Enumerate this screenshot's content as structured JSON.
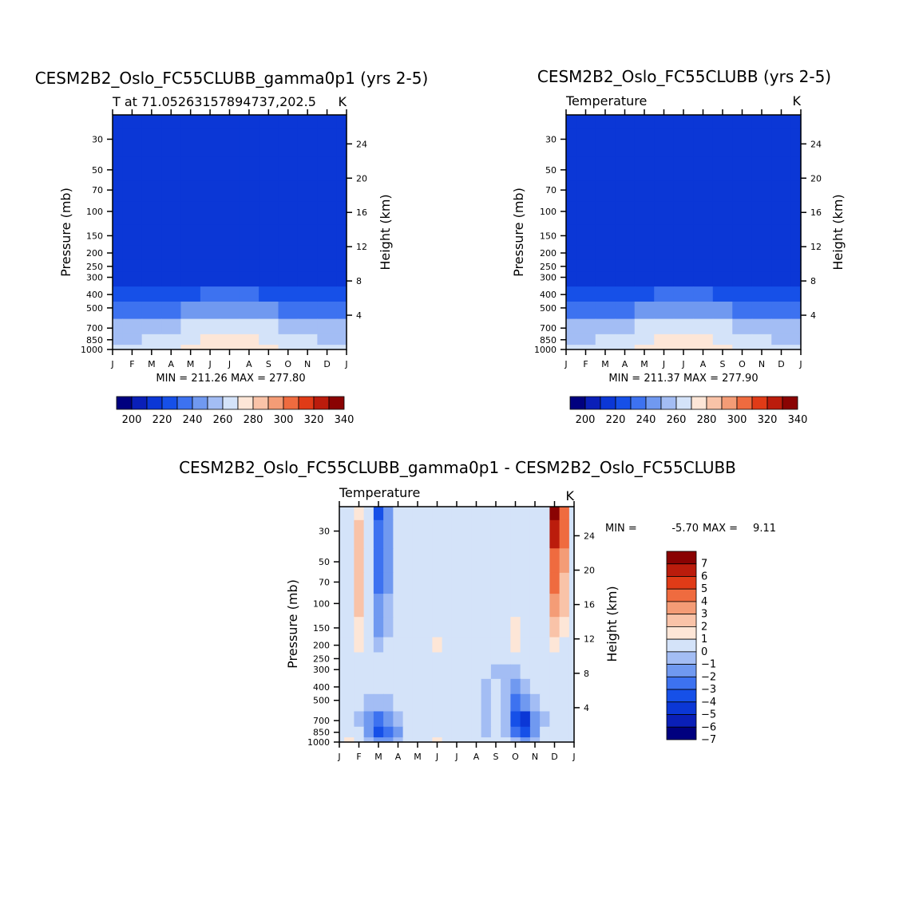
{
  "colors": {
    "palette": [
      "#00007f",
      "#0a1fb8",
      "#0b37d6",
      "#1650e8",
      "#3d72f0",
      "#7099f0",
      "#a3bdf4",
      "#d4e3f9",
      "#fde6d7",
      "#f9c3a8",
      "#f49c76",
      "#ef6b3f",
      "#e03b17",
      "#bb1c0c",
      "#8a0303"
    ],
    "diff_palette": [
      "#00007f",
      "#0a1fb8",
      "#0b37d6",
      "#1650e8",
      "#3d72f0",
      "#7099f0",
      "#a3bdf4",
      "#d4e3f9",
      "#fde6d7",
      "#f9c3a8",
      "#f49c76",
      "#ef6b3f",
      "#e03b17",
      "#bb1c0c",
      "#8a0303"
    ]
  },
  "chart_data": [
    {
      "type": "heatmap",
      "title": "CESM2B2_Oslo_FC55CLUBB_gamma0p1 (yrs 2-5)",
      "subtitle_left": "T at 71.05263157894737,202.5",
      "subtitle_right": "K",
      "xlabel": "",
      "ylabel": "Pressure (mb)",
      "y2label": "Height (km)",
      "x_ticks": [
        "J",
        "F",
        "M",
        "A",
        "M",
        "J",
        "J",
        "A",
        "S",
        "O",
        "N",
        "D",
        "J"
      ],
      "y_ticks": [
        "30",
        "50",
        "70",
        "100",
        "150",
        "200",
        "250",
        "300",
        "400",
        "500",
        "700",
        "850",
        "1000"
      ],
      "y_tick_values": [
        30,
        50,
        70,
        100,
        150,
        200,
        250,
        300,
        400,
        500,
        700,
        850,
        1000
      ],
      "y2_ticks": [
        "24",
        "20",
        "16",
        "12",
        "8",
        "4"
      ],
      "y2_tick_values": [
        24,
        20,
        16,
        12,
        8,
        4
      ],
      "ylim": [
        20,
        1000
      ],
      "stats": "MIN = 211.26 MAX = 277.80",
      "levels": [
        195,
        200,
        205,
        210,
        215,
        220,
        225,
        230,
        235,
        240,
        245,
        250,
        255,
        260,
        265,
        270,
        275,
        280
      ],
      "colorbar_labels": [
        "200",
        "220",
        "240",
        "260",
        "280",
        "300",
        "320",
        "340"
      ],
      "colorbar_values": [
        200,
        220,
        240,
        260,
        280,
        300,
        320,
        340
      ],
      "columns_months": [
        0,
        1,
        2,
        3,
        4,
        5,
        6,
        7,
        8,
        9,
        10,
        11,
        12
      ],
      "rows_pressure": [
        20,
        30,
        50,
        70,
        100,
        150,
        200,
        250,
        300,
        400,
        500,
        700,
        850,
        1000
      ],
      "values": [
        [
          213,
          213,
          215,
          217,
          218,
          219,
          219,
          219,
          218,
          217,
          215,
          214,
          213
        ],
        [
          213,
          213,
          215,
          217,
          218,
          219,
          219,
          219,
          218,
          217,
          215,
          214,
          213
        ],
        [
          213,
          213,
          215,
          217,
          218,
          219,
          219,
          219,
          218,
          217,
          215,
          214,
          213
        ],
        [
          213,
          213,
          215,
          217,
          218,
          219,
          219,
          219,
          218,
          217,
          215,
          214,
          213
        ],
        [
          212,
          213,
          216,
          217,
          217,
          218,
          218,
          218,
          217,
          216,
          216,
          213,
          212
        ],
        [
          212,
          212,
          212,
          213,
          216,
          217,
          217,
          217,
          216,
          214,
          212,
          212,
          212
        ],
        [
          211,
          211,
          211,
          212,
          214,
          217,
          217,
          216,
          213,
          212,
          212,
          212,
          211
        ],
        [
          212,
          212,
          212,
          213,
          215,
          217,
          217,
          217,
          216,
          214,
          213,
          213,
          212
        ],
        [
          213,
          213,
          214,
          215,
          217,
          219,
          219,
          219,
          217,
          216,
          215,
          214,
          213
        ],
        [
          222,
          222,
          223,
          225,
          228,
          231,
          232,
          231,
          228,
          225,
          223,
          222,
          222
        ],
        [
          234,
          234,
          235,
          238,
          241,
          244,
          245,
          244,
          241,
          238,
          236,
          234,
          234
        ],
        [
          252,
          252,
          254,
          257,
          261,
          265,
          266,
          265,
          261,
          257,
          254,
          252,
          252
        ],
        [
          258,
          258,
          260,
          263,
          267,
          272,
          274,
          272,
          267,
          263,
          260,
          258,
          258
        ],
        [
          262,
          262,
          264,
          267,
          271,
          276,
          278,
          276,
          271,
          267,
          264,
          262,
          262
        ]
      ]
    },
    {
      "type": "heatmap",
      "title": "CESM2B2_Oslo_FC55CLUBB (yrs 2-5)",
      "subtitle_left": "Temperature",
      "subtitle_right": "K",
      "ylabel": "Pressure (mb)",
      "y2label": "Height (km)",
      "x_ticks": [
        "J",
        "F",
        "M",
        "A",
        "M",
        "J",
        "J",
        "A",
        "S",
        "O",
        "N",
        "D",
        "J"
      ],
      "y_ticks": [
        "30",
        "50",
        "70",
        "100",
        "150",
        "200",
        "250",
        "300",
        "400",
        "500",
        "700",
        "850",
        "1000"
      ],
      "y_tick_values": [
        30,
        50,
        70,
        100,
        150,
        200,
        250,
        300,
        400,
        500,
        700,
        850,
        1000
      ],
      "y2_ticks": [
        "24",
        "20",
        "16",
        "12",
        "8",
        "4"
      ],
      "y2_tick_values": [
        24,
        20,
        16,
        12,
        8,
        4
      ],
      "ylim": [
        20,
        1000
      ],
      "stats": "MIN = 211.37 MAX = 277.90",
      "levels": [
        195,
        200,
        205,
        210,
        215,
        220,
        225,
        230,
        235,
        240,
        245,
        250,
        255,
        260,
        265,
        270,
        275,
        280
      ],
      "colorbar_labels": [
        "200",
        "220",
        "240",
        "260",
        "280",
        "300",
        "320",
        "340"
      ],
      "colorbar_values": [
        200,
        220,
        240,
        260,
        280,
        300,
        320,
        340
      ],
      "columns_months": [
        0,
        1,
        2,
        3,
        4,
        5,
        6,
        7,
        8,
        9,
        10,
        11,
        12
      ],
      "rows_pressure": [
        20,
        30,
        50,
        70,
        100,
        150,
        200,
        250,
        300,
        400,
        500,
        700,
        850,
        1000
      ],
      "values": [
        [
          213,
          213,
          215,
          217,
          218,
          219,
          219,
          219,
          218,
          217,
          215,
          214,
          213
        ],
        [
          213,
          213,
          215,
          217,
          218,
          219,
          219,
          219,
          218,
          217,
          215,
          214,
          213
        ],
        [
          213,
          213,
          215,
          217,
          218,
          219,
          219,
          219,
          218,
          217,
          215,
          214,
          213
        ],
        [
          213,
          213,
          215,
          217,
          218,
          219,
          219,
          219,
          218,
          217,
          215,
          214,
          213
        ],
        [
          212,
          213,
          216,
          217,
          217,
          218,
          218,
          218,
          217,
          216,
          216,
          213,
          212
        ],
        [
          212,
          212,
          212,
          213,
          216,
          217,
          217,
          217,
          216,
          214,
          212,
          212,
          212
        ],
        [
          211,
          211,
          211,
          212,
          214,
          217,
          217,
          216,
          213,
          212,
          212,
          212,
          211
        ],
        [
          212,
          212,
          212,
          213,
          215,
          217,
          217,
          217,
          216,
          214,
          213,
          213,
          212
        ],
        [
          213,
          213,
          214,
          215,
          217,
          219,
          219,
          219,
          217,
          216,
          215,
          214,
          213
        ],
        [
          222,
          222,
          223,
          225,
          228,
          231,
          232,
          231,
          228,
          225,
          223,
          222,
          222
        ],
        [
          234,
          234,
          235,
          238,
          241,
          244,
          245,
          244,
          241,
          238,
          236,
          234,
          234
        ],
        [
          252,
          252,
          254,
          257,
          261,
          265,
          266,
          265,
          261,
          257,
          254,
          252,
          252
        ],
        [
          258,
          258,
          260,
          263,
          267,
          272,
          274,
          272,
          267,
          263,
          260,
          258,
          258
        ],
        [
          262,
          262,
          264,
          267,
          271,
          276,
          278,
          276,
          271,
          267,
          264,
          262,
          262
        ]
      ]
    },
    {
      "type": "heatmap",
      "title": "CESM2B2_Oslo_FC55CLUBB_gamma0p1 - CESM2B2_Oslo_FC55CLUBB",
      "subtitle_left": "Temperature",
      "subtitle_right": "K",
      "ylabel": "Pressure (mb)",
      "y2label": "Height (km)",
      "x_ticks": [
        "J",
        "F",
        "M",
        "A",
        "M",
        "J",
        "J",
        "A",
        "S",
        "O",
        "N",
        "D",
        "J"
      ],
      "y_ticks": [
        "30",
        "50",
        "70",
        "100",
        "150",
        "200",
        "250",
        "300",
        "400",
        "500",
        "700",
        "850",
        "1000"
      ],
      "y_tick_values": [
        30,
        50,
        70,
        100,
        150,
        200,
        250,
        300,
        400,
        500,
        700,
        850,
        1000
      ],
      "y2_ticks": [
        "24",
        "20",
        "16",
        "12",
        "8",
        "4"
      ],
      "y2_tick_values": [
        24,
        20,
        16,
        12,
        8,
        4
      ],
      "ylim": [
        20,
        1000
      ],
      "stats_min_label": "MIN =",
      "stats_min_value": "-5.70",
      "stats_max_label": "MAX =",
      "stats_max_value": "9.11",
      "levels": [
        -7,
        -6,
        -5,
        -4,
        -3,
        -2,
        -1,
        0,
        1,
        2,
        3,
        4,
        5,
        6,
        7
      ],
      "colorbar_labels": [
        "7",
        "6",
        "5",
        "4",
        "3",
        "2",
        "1",
        "0",
        "−1",
        "−2",
        "−3",
        "−4",
        "−5",
        "−6",
        "−7"
      ],
      "columns_months": [
        0,
        0.5,
        1,
        1.5,
        2,
        2.5,
        3,
        3.5,
        4,
        4.5,
        5,
        5.5,
        6,
        6.5,
        7,
        7.5,
        8,
        8.5,
        9,
        9.5,
        10,
        10.5,
        11,
        11.5,
        12
      ],
      "rows_pressure": [
        20,
        30,
        50,
        70,
        100,
        150,
        200,
        250,
        300,
        400,
        500,
        700,
        850,
        1000
      ],
      "values": [
        [
          -0.3,
          0.4,
          1.6,
          0.2,
          -4.2,
          -2.2,
          -0.8,
          -0.3,
          -0.2,
          -0.2,
          -0.3,
          -0.3,
          -0.4,
          -0.3,
          -0.2,
          -0.3,
          0.2,
          0.6,
          0.8,
          0.3,
          -0.3,
          0.4,
          8.5,
          4.5,
          0.2
        ],
        [
          -0.3,
          0.6,
          2.0,
          0.2,
          -4.0,
          -2.4,
          -0.9,
          -0.3,
          -0.2,
          -0.2,
          -0.3,
          -0.3,
          -0.4,
          -0.3,
          -0.2,
          -0.3,
          0.2,
          0.7,
          0.9,
          0.3,
          -0.3,
          0.4,
          6.5,
          4.0,
          0.2
        ],
        [
          -0.3,
          0.8,
          2.4,
          0.1,
          -3.6,
          -2.5,
          -1.0,
          -0.3,
          -0.2,
          -0.2,
          -0.3,
          -0.3,
          -0.4,
          -0.3,
          -0.2,
          -0.3,
          0.1,
          0.5,
          0.6,
          0.2,
          -0.3,
          0.4,
          4.5,
          3.0,
          0.1
        ],
        [
          -0.3,
          0.8,
          2.3,
          0.0,
          -3.8,
          -2.3,
          -1.0,
          -0.3,
          -0.3,
          -0.3,
          -0.4,
          -0.4,
          -0.4,
          -0.3,
          -0.2,
          -0.3,
          0.0,
          0.4,
          0.5,
          0.2,
          -0.3,
          0.3,
          4.2,
          2.5,
          0.1
        ],
        [
          -0.2,
          0.7,
          2.0,
          0.0,
          -2.2,
          -2.0,
          -0.9,
          -0.3,
          -0.3,
          -0.3,
          -0.5,
          -0.4,
          -0.4,
          -0.3,
          -0.2,
          -0.3,
          0.1,
          0.6,
          0.9,
          0.4,
          -0.2,
          0.3,
          3.5,
          2.0,
          0.1
        ],
        [
          0.0,
          0.6,
          1.6,
          -0.4,
          -2.5,
          -1.8,
          -0.8,
          -0.2,
          0.0,
          0.5,
          0.3,
          -0.2,
          -0.3,
          -0.2,
          -0.1,
          -0.2,
          0.1,
          0.8,
          1.9,
          0.9,
          0.0,
          0.3,
          2.0,
          1.2,
          0.2
        ],
        [
          0.2,
          0.5,
          1.2,
          0.0,
          -1.5,
          -1.0,
          -0.4,
          0.2,
          0.5,
          0.8,
          1.3,
          0.9,
          0.4,
          0.1,
          -0.1,
          0.0,
          0.3,
          0.6,
          1.0,
          0.8,
          0.6,
          0.8,
          1.4,
          0.8,
          0.3
        ],
        [
          0.3,
          0.6,
          0.9,
          0.4,
          0.2,
          0.3,
          0.4,
          0.5,
          0.6,
          0.8,
          0.9,
          0.7,
          0.5,
          0.2,
          0.0,
          -0.2,
          -0.2,
          -0.1,
          0.0,
          0.3,
          0.6,
          0.7,
          0.8,
          0.6,
          0.4
        ],
        [
          0.2,
          0.3,
          0.4,
          0.3,
          0.2,
          0.2,
          0.2,
          0.3,
          0.3,
          0.3,
          0.2,
          0.0,
          -0.2,
          -0.3,
          -0.4,
          -0.6,
          -1.2,
          -1.5,
          -1.3,
          -0.8,
          -0.3,
          -0.1,
          0.0,
          0.1,
          0.2
        ],
        [
          -0.2,
          -0.5,
          -0.6,
          -0.6,
          -0.6,
          -0.5,
          -0.5,
          -0.6,
          -0.7,
          -0.7,
          -0.8,
          -0.8,
          -0.7,
          -0.6,
          -0.5,
          -1.2,
          -0.8,
          -1.5,
          -2.2,
          -1.8,
          -1.0,
          -0.6,
          -0.4,
          -0.3,
          -0.2
        ],
        [
          -0.3,
          -0.6,
          -0.8,
          -1.5,
          -2.0,
          -1.6,
          -1.0,
          -0.7,
          -0.5,
          -0.6,
          -0.8,
          -0.6,
          -0.5,
          -0.6,
          -0.7,
          -1.2,
          -0.9,
          -1.8,
          -3.2,
          -2.6,
          -1.5,
          -0.7,
          -0.5,
          -0.4,
          -0.3
        ],
        [
          -0.2,
          -0.5,
          -1.2,
          -2.5,
          -3.5,
          -2.8,
          -1.6,
          -0.7,
          -0.3,
          -0.4,
          -0.2,
          0.2,
          -0.4,
          -0.6,
          -0.8,
          -1.5,
          -0.8,
          -1.6,
          -4.2,
          -5.2,
          -3.0,
          -1.2,
          -0.6,
          -0.4,
          -0.2
        ],
        [
          -0.1,
          0.5,
          -0.8,
          -2.8,
          -4.2,
          -3.6,
          -2.2,
          -1.0,
          0.2,
          0.6,
          0.8,
          0.5,
          -0.2,
          -0.5,
          -0.6,
          -1.3,
          -0.8,
          -1.3,
          -3.8,
          -4.8,
          -2.4,
          -0.9,
          -0.4,
          -0.3,
          -0.1
        ],
        [
          0.0,
          1.2,
          0.2,
          -1.5,
          -2.5,
          -2.2,
          -1.4,
          -0.5,
          0.4,
          0.9,
          1.0,
          0.6,
          0.0,
          -0.3,
          -0.4,
          -0.8,
          -0.6,
          -0.8,
          -2.0,
          -2.2,
          -1.2,
          -0.4,
          -0.2,
          -0.1,
          0.0
        ]
      ]
    }
  ]
}
